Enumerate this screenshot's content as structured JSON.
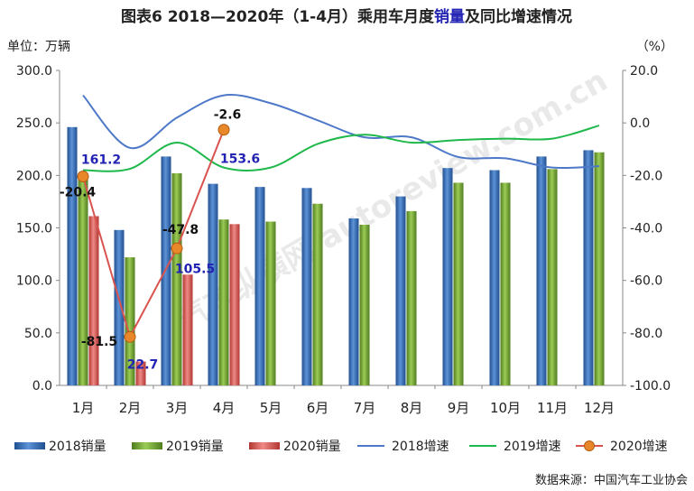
{
  "chart_data": {
    "type": "bar",
    "title_prefix": "图表6",
    "title_main": "2018—2020年（1-4月）乘用车月度",
    "title_highlight": "销量",
    "title_suffix": "及同比增速情况",
    "ylabel_left": "单位：万辆",
    "ylabel_right": "（%）",
    "ylim_left": [
      0,
      300
    ],
    "ylim_right": [
      -100,
      20
    ],
    "left_ticks": [
      "0.0",
      "50.0",
      "100.0",
      "150.0",
      "200.0",
      "250.0",
      "300.0"
    ],
    "right_ticks": [
      "-100.0",
      "-80.0",
      "-60.0",
      "-40.0",
      "-20.0",
      "0.0",
      "20.0"
    ],
    "categories": [
      "1月",
      "2月",
      "3月",
      "4月",
      "5月",
      "6月",
      "7月",
      "8月",
      "9月",
      "10月",
      "11月",
      "12月"
    ],
    "bar_series": [
      {
        "name": "2018销量",
        "color": "#3a6fb5",
        "values": [
          246,
          148,
          218,
          192,
          189,
          188,
          159,
          180,
          207,
          205,
          218,
          224
        ]
      },
      {
        "name": "2019销量",
        "color": "#7aab3a",
        "values": [
          202,
          122,
          202,
          158,
          156,
          173,
          153,
          166,
          193,
          193,
          206,
          222
        ]
      },
      {
        "name": "2020销量",
        "color": "#d9534f",
        "values": [
          161.2,
          22.7,
          105.5,
          153.6
        ]
      }
    ],
    "line_series": [
      {
        "name": "2018增速",
        "color": "#4e79c8",
        "values": [
          10.5,
          -9.5,
          2.0,
          10.5,
          7.5,
          1.0,
          -5.5,
          -5.5,
          -13.0,
          -13.5,
          -17.0,
          -16.5
        ]
      },
      {
        "name": "2019增速",
        "color": "#1fb84a",
        "values": [
          -18.0,
          -17.5,
          -7.5,
          -17.0,
          -17.0,
          -8.0,
          -4.5,
          -7.5,
          -6.5,
          -6.0,
          -6.0,
          -1.0
        ]
      },
      {
        "name": "2020增速",
        "color": "#d9534f",
        "marker_color": "#e8862a",
        "values": [
          -20.4,
          -81.5,
          -47.8,
          -2.6
        ]
      }
    ],
    "bar_labels_2020": [
      "161.2",
      "22.7",
      "105.5",
      "153.6"
    ],
    "growth_labels_2020": [
      "-20.4",
      "-81.5",
      "-47.8",
      "-2.6"
    ],
    "legend_position": "bottom",
    "grid": false,
    "source": "数据来源：中国汽车工业协会",
    "watermark": "汽车纵横网 autoreview.com.cn"
  }
}
